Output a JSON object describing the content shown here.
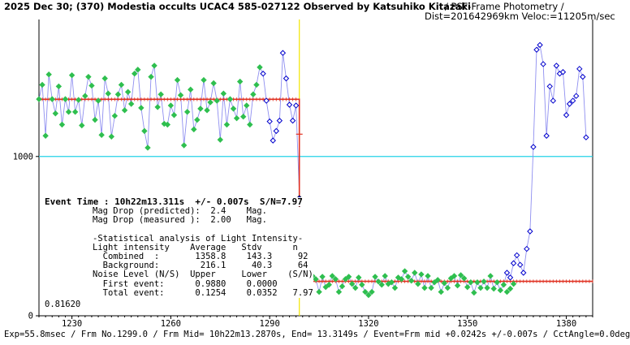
{
  "header": {
    "title_bold": "2025 Dec 30; (370) Modestia occults UCAC4 585-027122 Observed by Katsuhiko Kitazaki",
    "title_rest": "/ PSF-Frame Photometry /",
    "subtitle": "Dist=201642969km Veloc:=11205m/sec"
  },
  "footer": "Exp=55.8msec / Frm No.1299.0 / Frm Mid= 10h22m13.2870s, End= 13.3149s / Event=Frm mid +0.0242s +/-0.007s / CctAngle=0.0deg",
  "stats": {
    "event_time": "Event Time : 10h22m13.311s  +/- 0.007s  S/N=7.97",
    "lines": [
      "Mag Drop (predicted):  2.4    Mag.",
      "Mag Drop (measured ):  2.00   Mag.",
      "",
      "-Statistical analysis of Light Intensity-",
      "Light intensity    Average   Stdv      n",
      "  Combined  :       1358.8    143.3     92",
      "  Background:        216.1     40.3     64",
      "Noise Level (N/S)  Upper     Lower    (S/N)",
      "  First event:      0.9880    0.0000",
      "  Total event:      0.1254    0.0352   7.97",
      "0.81620"
    ]
  },
  "chart_data": {
    "type": "scatter",
    "xlim": [
      1220,
      1388
    ],
    "ylim": [
      0,
      1860
    ],
    "x_ticks": [
      1230,
      1260,
      1290,
      1320,
      1350,
      1380
    ],
    "x_tick_labels": [
      "1230",
      "1260",
      "1290",
      "1320",
      "1350",
      "1380"
    ],
    "y_ticks": [
      0,
      1000
    ],
    "y_tick_labels": [
      "0",
      "1000"
    ],
    "reference_lines": [
      {
        "kind": "horizontal",
        "y": 1000,
        "color": "#22d3e8"
      },
      {
        "kind": "vertical",
        "x": 1299,
        "color": "#f2e600"
      }
    ],
    "model": {
      "color": "#e03020",
      "upper_level": 1358.8,
      "lower_level": 216.1,
      "event_x": 1299.0
    },
    "series": [
      {
        "color": "#2fbf4f",
        "x": [
          1220,
          1221,
          1222,
          1223,
          1224,
          1225,
          1226,
          1227,
          1228,
          1229,
          1230,
          1231,
          1232,
          1233,
          1234,
          1235,
          1236,
          1237,
          1238,
          1239,
          1240,
          1241,
          1242,
          1243,
          1244,
          1245,
          1246,
          1247,
          1248,
          1249,
          1250,
          1251,
          1252,
          1253,
          1254,
          1255,
          1256,
          1257,
          1258,
          1259,
          1260,
          1261,
          1262,
          1263,
          1264,
          1265,
          1266,
          1267,
          1268,
          1269,
          1270,
          1271,
          1272,
          1273,
          1274,
          1275,
          1276,
          1277,
          1278,
          1279,
          1280,
          1281,
          1282,
          1283,
          1284,
          1285,
          1286,
          1287
        ],
        "values": [
          1360,
          1450,
          1130,
          1515,
          1360,
          1270,
          1440,
          1200,
          1360,
          1280,
          1510,
          1280,
          1355,
          1195,
          1380,
          1500,
          1445,
          1230,
          1350,
          1135,
          1490,
          1395,
          1125,
          1255,
          1390,
          1450,
          1290,
          1405,
          1330,
          1520,
          1545,
          1305,
          1160,
          1055,
          1500,
          1570,
          1310,
          1390,
          1205,
          1200,
          1320,
          1260,
          1480,
          1385,
          1070,
          1280,
          1420,
          1170,
          1230,
          1300,
          1480,
          1290,
          1340,
          1460,
          1350,
          1105,
          1395,
          1200,
          1360,
          1300,
          1240,
          1470,
          1250,
          1320,
          1200,
          1390,
          1450,
          1560
        ]
      },
      {
        "color": "#0000cc",
        "x": [
          1288,
          1289,
          1290,
          1291,
          1292,
          1293,
          1294,
          1295,
          1296,
          1297,
          1298
        ],
        "values": [
          1520,
          1350,
          1220,
          1100,
          1160,
          1225,
          1650,
          1490,
          1325,
          1225,
          1320
        ]
      },
      {
        "color": "#2fbf4f",
        "x": [
          1300,
          1301,
          1302,
          1303,
          1304,
          1305,
          1306,
          1307,
          1308,
          1309,
          1310,
          1311,
          1312,
          1313,
          1314,
          1315,
          1316,
          1317,
          1318,
          1319,
          1320,
          1321,
          1322,
          1323,
          1324,
          1325,
          1326,
          1327,
          1328,
          1329,
          1330,
          1331,
          1332,
          1333,
          1334,
          1335,
          1336,
          1337,
          1338,
          1339,
          1340,
          1341,
          1342,
          1343,
          1344,
          1345,
          1346,
          1347,
          1348,
          1349,
          1350,
          1351,
          1352,
          1353,
          1354,
          1355,
          1356,
          1357,
          1358,
          1359,
          1360,
          1361,
          1362,
          1363,
          1364
        ],
        "values": [
          215,
          190,
          180,
          250,
          230,
          150,
          245,
          180,
          195,
          250,
          230,
          150,
          185,
          230,
          245,
          200,
          175,
          240,
          195,
          150,
          130,
          150,
          245,
          215,
          195,
          250,
          200,
          210,
          175,
          240,
          230,
          280,
          245,
          220,
          270,
          200,
          260,
          175,
          250,
          175,
          210,
          225,
          150,
          205,
          175,
          235,
          250,
          190,
          255,
          235,
          180,
          210,
          145,
          210,
          175,
          215,
          175,
          250,
          170,
          210,
          160,
          195,
          150,
          170,
          200
        ]
      },
      {
        "color": "#0000cc",
        "x": [
          1362,
          1363,
          1364,
          1365,
          1366,
          1367,
          1368,
          1369,
          1370,
          1371,
          1372,
          1373,
          1374,
          1375,
          1376,
          1377,
          1378,
          1379,
          1380,
          1381,
          1382,
          1383,
          1384,
          1385,
          1386
        ],
        "values": [
          270,
          240,
          330,
          380,
          320,
          270,
          420,
          530,
          1060,
          1670,
          1700,
          1580,
          1130,
          1440,
          1350,
          1570,
          1520,
          1530,
          1260,
          1330,
          1350,
          1380,
          1550,
          1500,
          1120
        ]
      }
    ]
  }
}
